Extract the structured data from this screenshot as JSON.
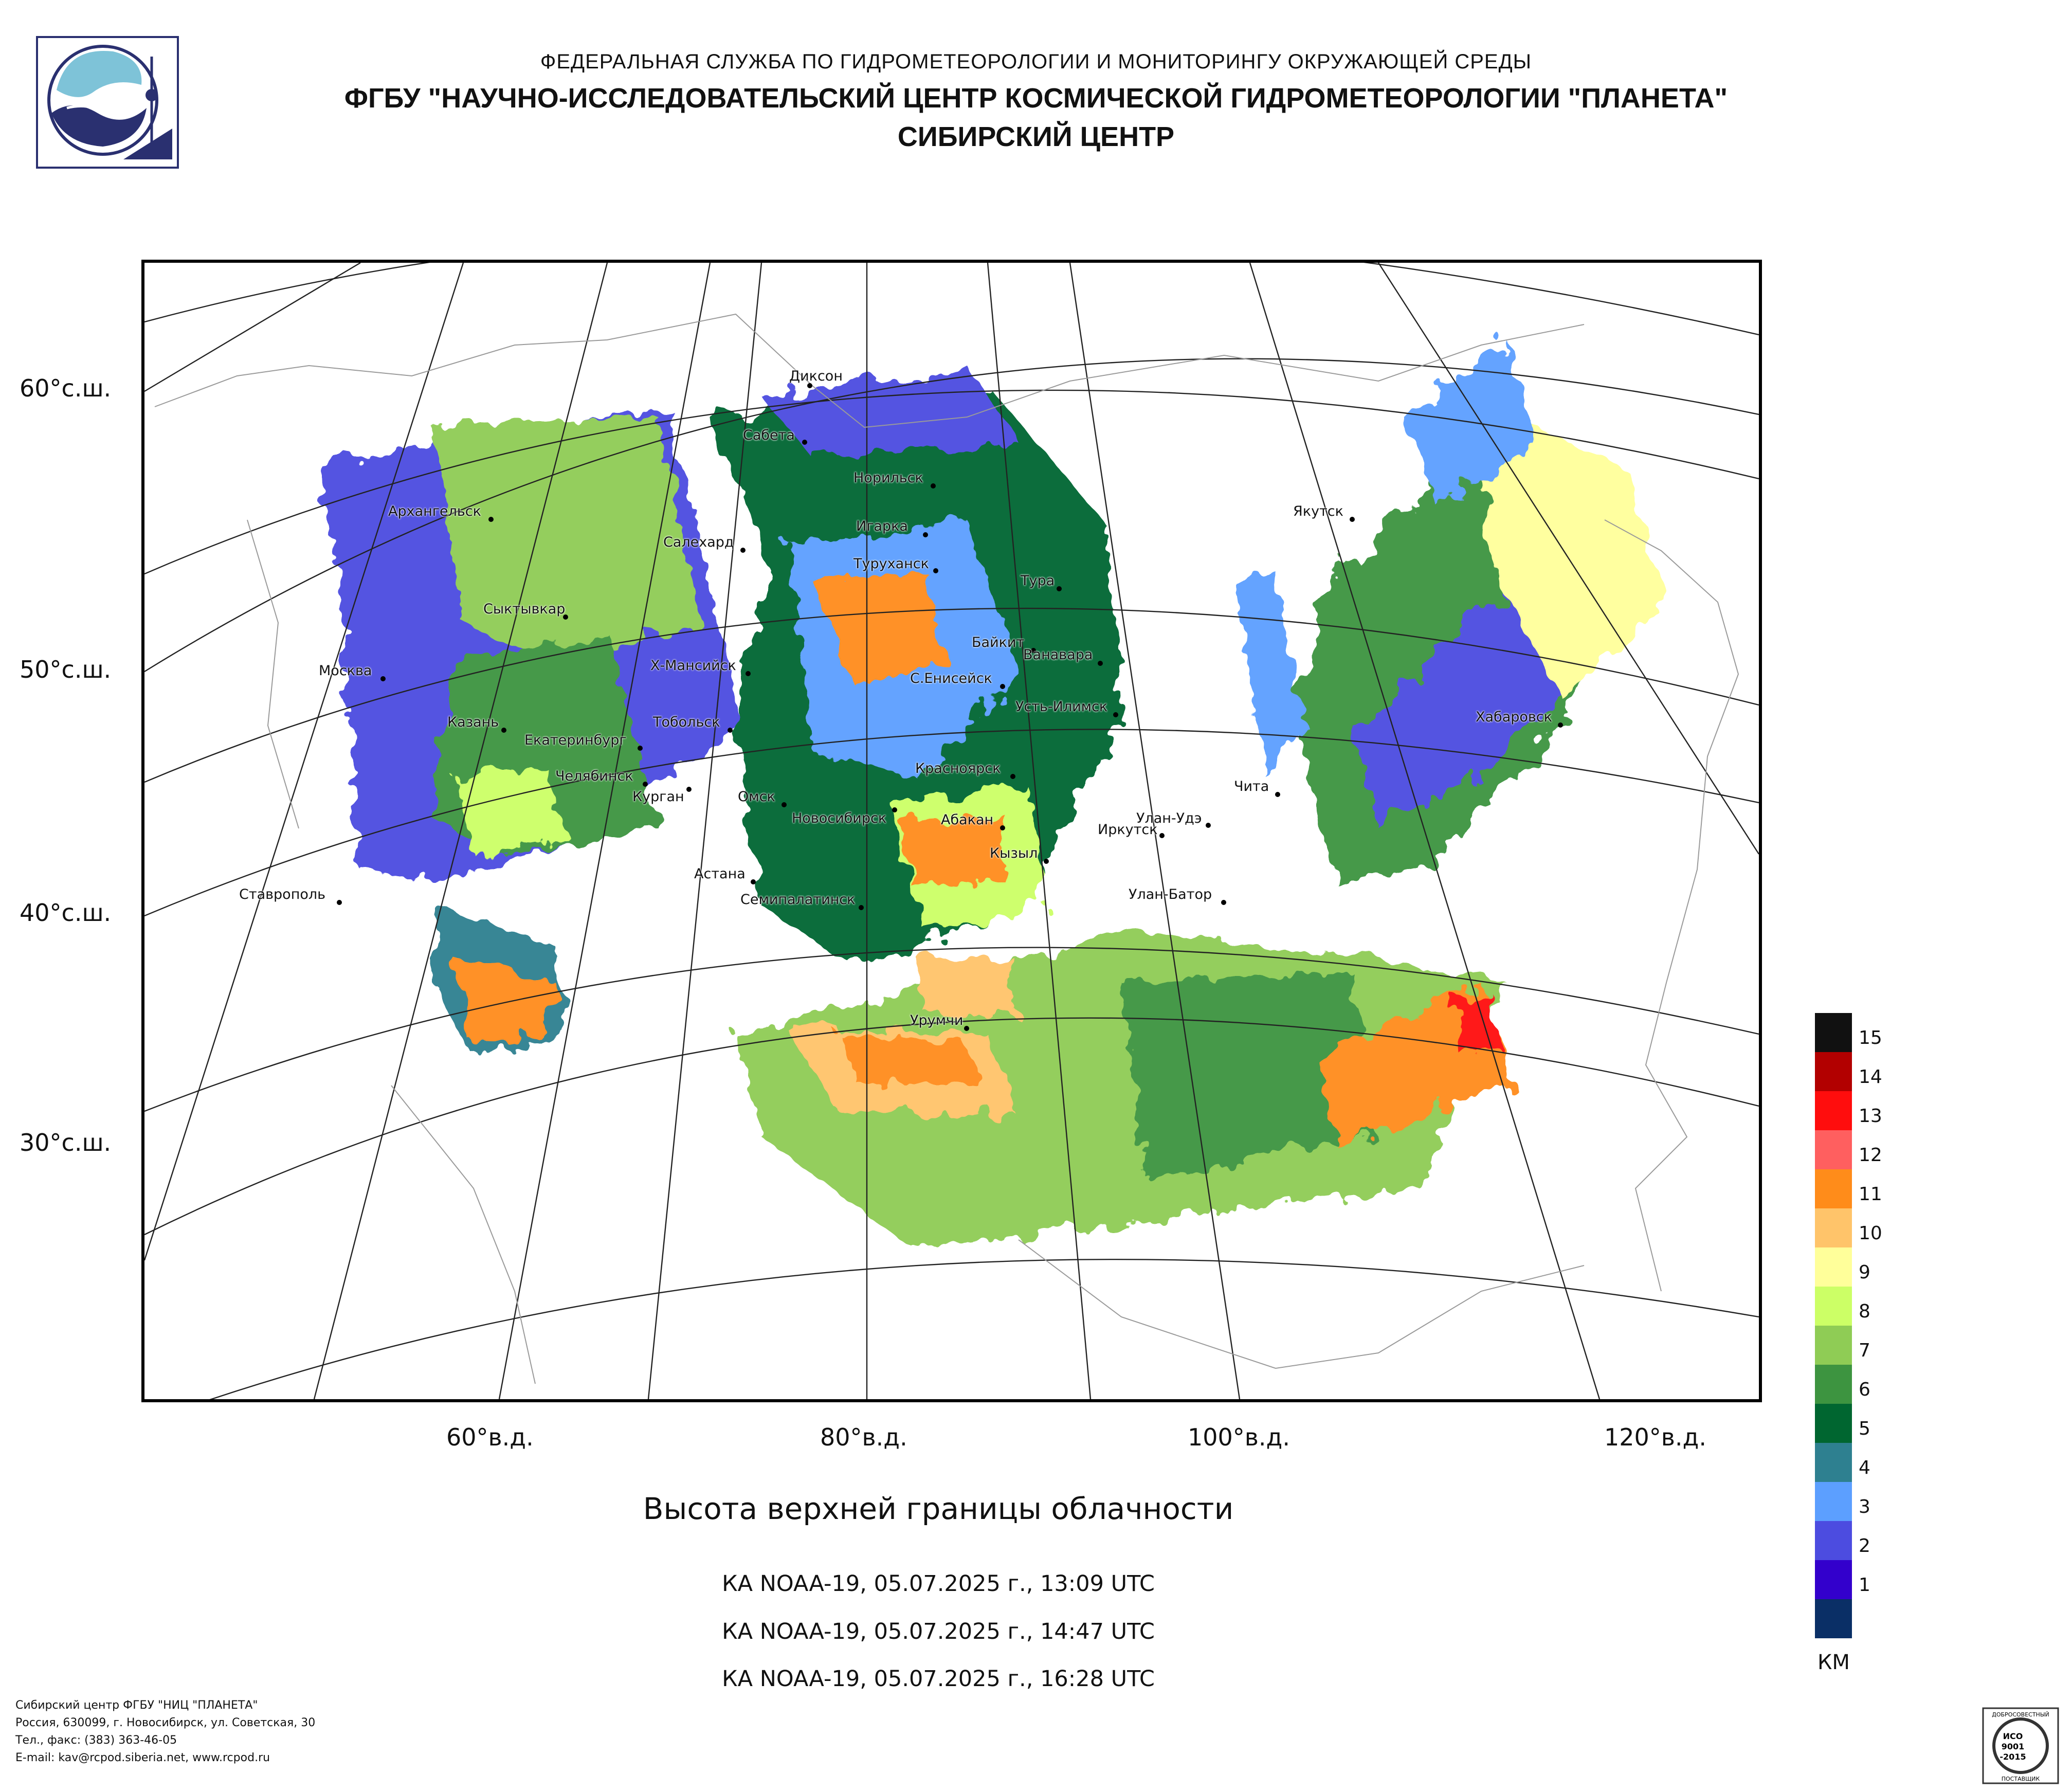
{
  "header": {
    "line1": "ФЕДЕРАЛЬНАЯ СЛУЖБА ПО ГИДРОМЕТЕОРОЛОГИИ И МОНИТОРИНГУ ОКРУЖАЮЩЕЙ СРЕДЫ",
    "line2": "ФГБУ \"НАУЧНО-ИССЛЕДОВАТЕЛЬСКИЙ ЦЕНТР КОСМИЧЕСКОЙ ГИДРОМЕТЕОРОЛОГИИ \"ПЛАНЕТА\"",
    "line3": "СИБИРСКИЙ ЦЕНТР"
  },
  "map": {
    "lat_labels": [
      "60°с.ш.",
      "50°с.ш.",
      "40°с.ш.",
      "30°с.ш."
    ],
    "lon_labels": [
      "60°в.д.",
      "80°в.д.",
      "100°в.д.",
      "120°в.д."
    ],
    "cities": [
      "Диксон",
      "Сабета",
      "Норильск",
      "Игарка",
      "Туруханск",
      "Салехард",
      "Архангельск",
      "Сыктывкар",
      "Тура",
      "Якутск",
      "Байкит",
      "Ванавара",
      "С.Енисейск",
      "Х-Мансийск",
      "Москва",
      "Тобольск",
      "Усть-Илимск",
      "Хабаровск",
      "Казань",
      "Екатеринбург",
      "Красноярск",
      "Челябинск",
      "Курган",
      "Омск",
      "Новосибирск",
      "Абакан",
      "Улан-Удэ",
      "Чита",
      "Иркутск",
      "Кызыл",
      "Астана",
      "Ставрополь",
      "Семипалатинск",
      "Улан-Батор",
      "Урумчи"
    ]
  },
  "legend": {
    "levels": [
      "15",
      "14",
      "13",
      "12",
      "11",
      "10",
      "9",
      "8",
      "7",
      "6",
      "5",
      "4",
      "3",
      "2",
      "1"
    ],
    "colors": [
      "#111111",
      "#b20000",
      "#ff0d0d",
      "#ff5f5f",
      "#ff8c1a",
      "#ffc46a",
      "#ffff9a",
      "#ccff66",
      "#8fcc55",
      "#3d9440",
      "#006630",
      "#2e8090",
      "#5c9fff",
      "#4c4ce0",
      "#3300cc",
      "#0a2f66"
    ],
    "unit": "КМ"
  },
  "title": "Высота верхней границы облачности",
  "passes": [
    "КА NOAA-19, 05.07.2025 г., 13:09 UTC",
    "КА NOAA-19, 05.07.2025 г., 14:47 UTC",
    "КА NOAA-19, 05.07.2025 г., 16:28 UTC"
  ],
  "footer": [
    "Сибирский центр ФГБУ \"НИЦ \"ПЛАНЕТА\"",
    "Россия, 630099, г. Новосибирск, ул. Советская, 30",
    "Тел., факс: (383) 363-46-05",
    "E-mail: kav@rcpod.siberia.net, www.rcpod.ru"
  ],
  "cert": {
    "top": "ДОБРОСОВЕСТНЫЙ",
    "mid1": "ИСО",
    "mid2": "9001",
    "mid3": "-2015",
    "bottom": "ПОСТАВЩИК"
  }
}
